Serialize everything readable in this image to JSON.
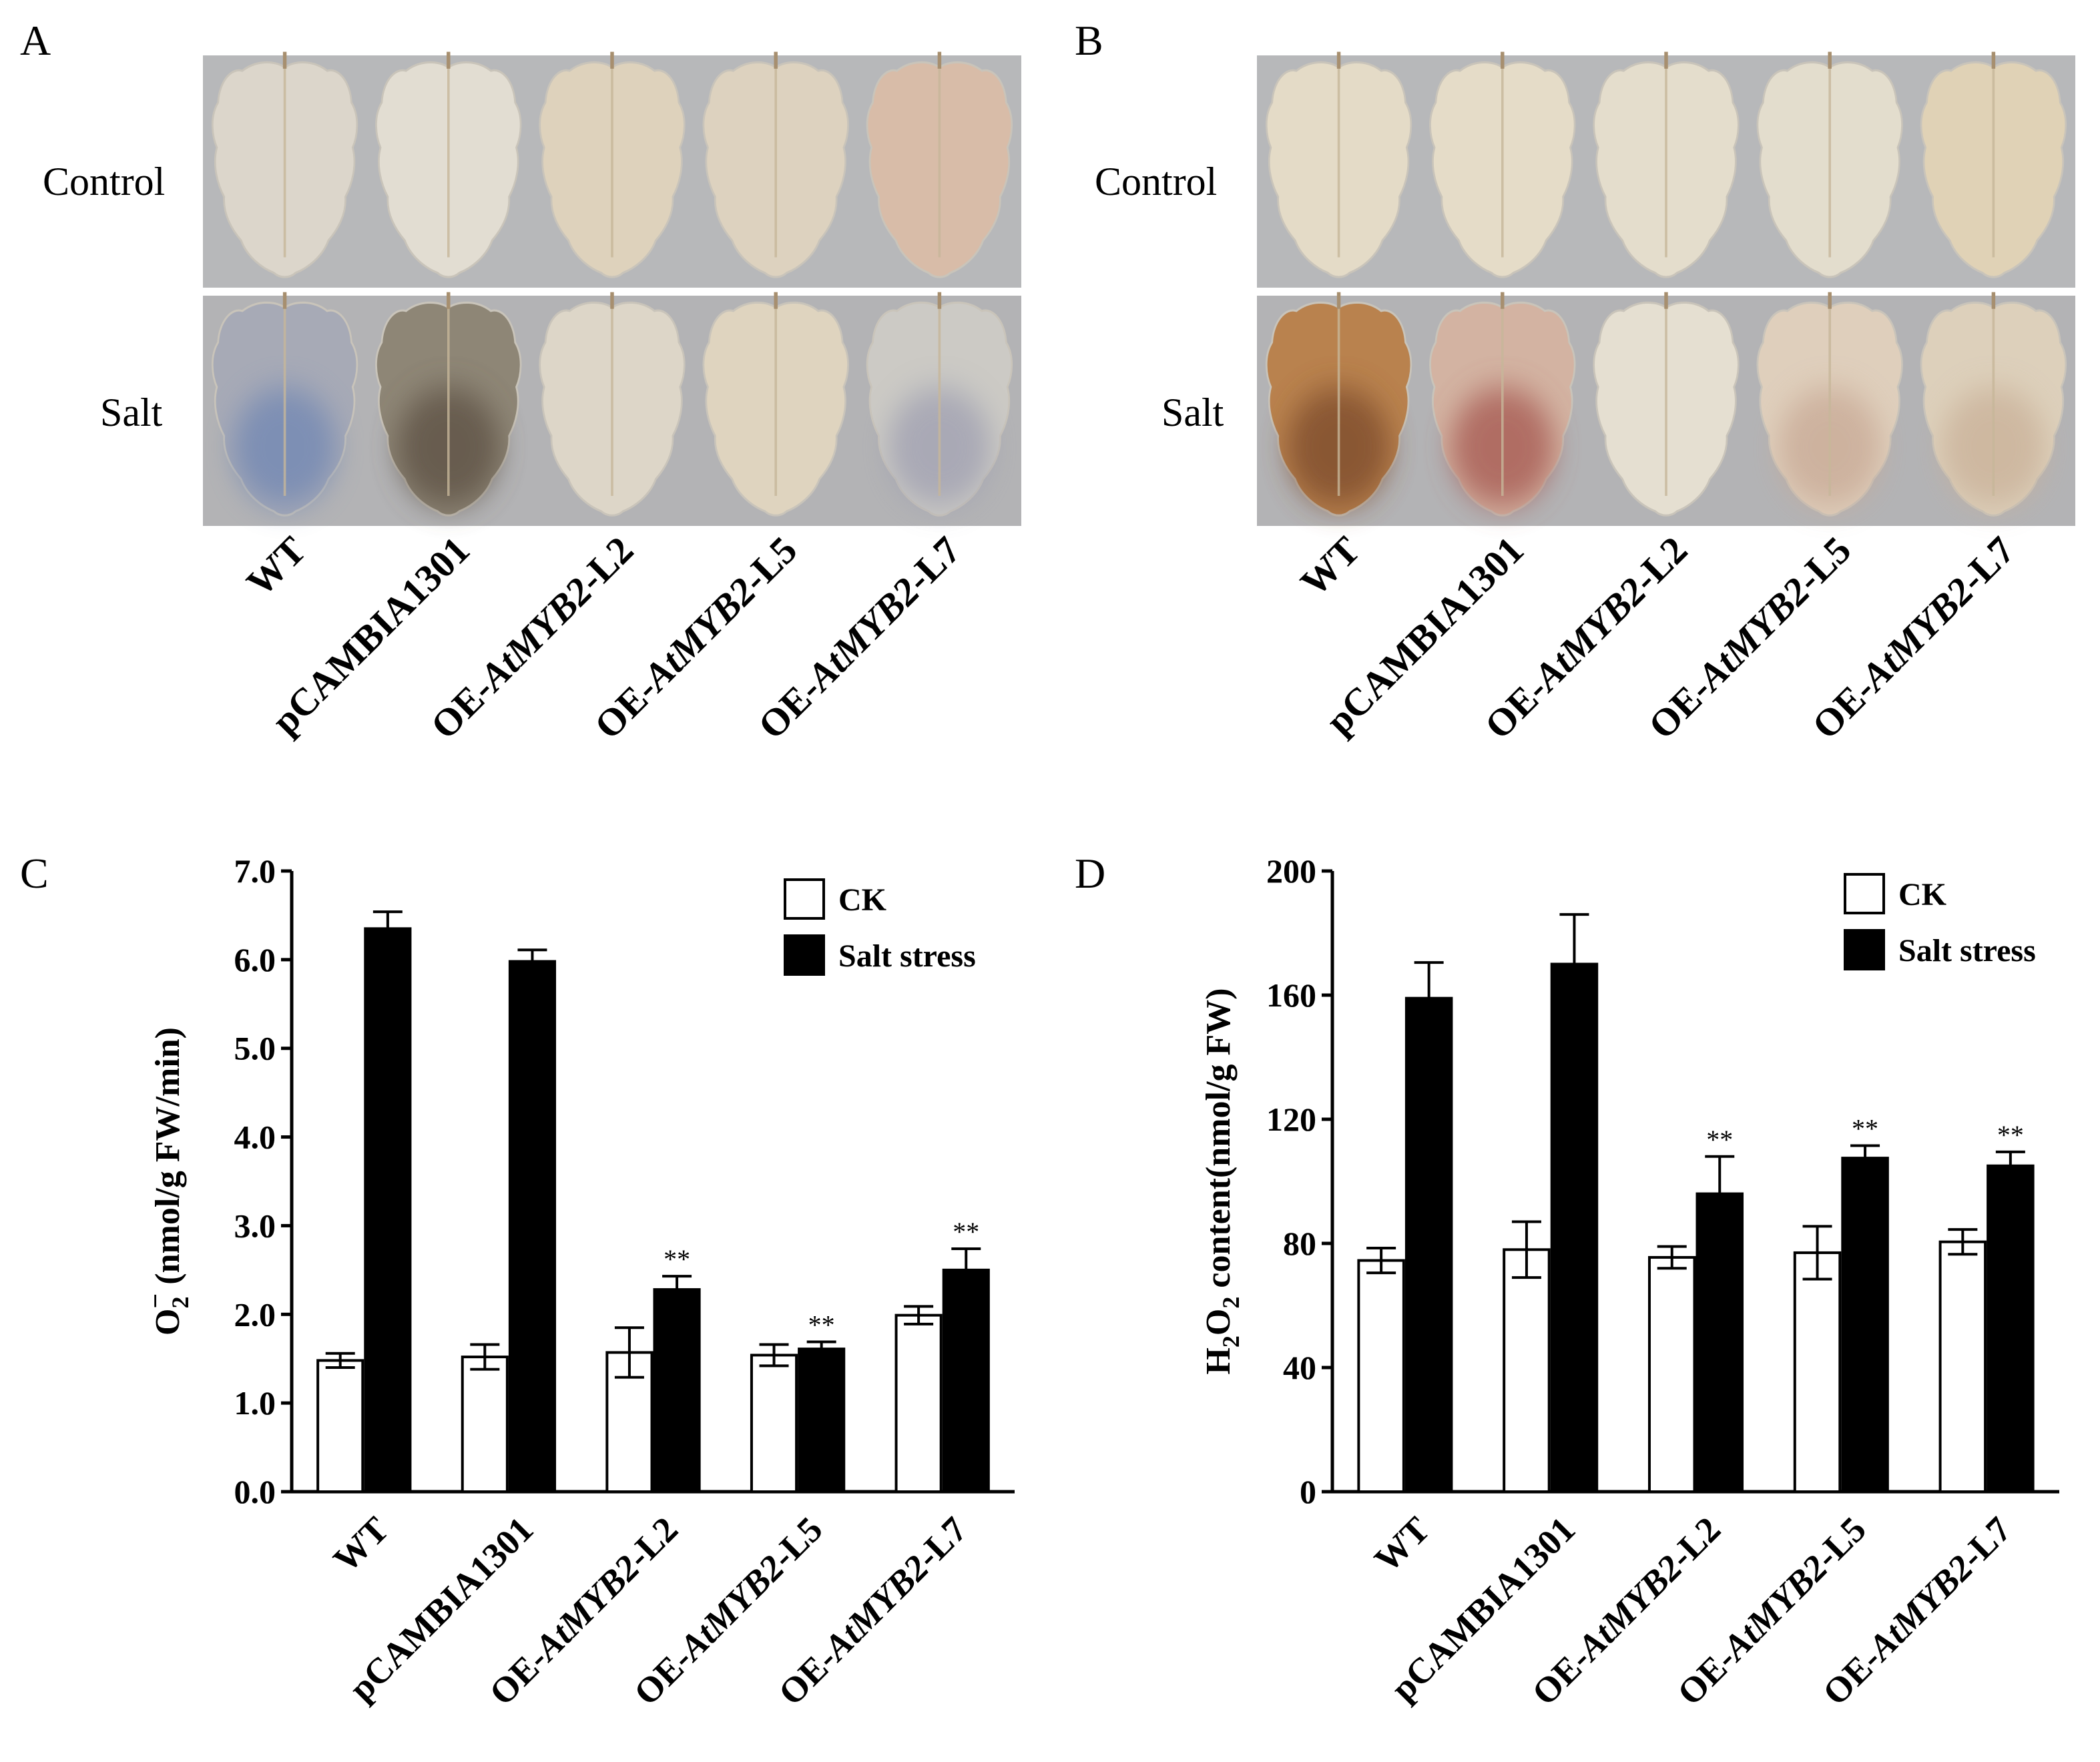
{
  "figure": {
    "panels": {
      "A": {
        "letter": "A",
        "rows": [
          "Control",
          "Salt"
        ],
        "lines": [
          {
            "base": "WT",
            "italic": "",
            "suffix": ""
          },
          {
            "base": "pCAMBIA1301",
            "italic": "",
            "suffix": ""
          },
          {
            "base": "OE-",
            "italic": "AtMYB2",
            "suffix": "-L2"
          },
          {
            "base": "OE-",
            "italic": "AtMYB2",
            "suffix": "-L5"
          },
          {
            "base": "OE-",
            "italic": "AtMYB2",
            "suffix": "-L7"
          }
        ],
        "leaf_colors": {
          "control": [
            "#dcd6cb",
            "#e2ddd2",
            "#ded2bc",
            "#ddd2bf",
            "#d8bca8"
          ],
          "salt": [
            "#a7aab6",
            "#8e8676",
            "#ddd6c8",
            "#dfd4bf",
            "#cccac5"
          ]
        },
        "stain_colors": {
          "salt": [
            "#6f86b4",
            "#5c5043",
            "",
            "",
            "#9e9fb0"
          ]
        }
      },
      "B": {
        "letter": "B",
        "rows": [
          "Control",
          "Salt"
        ],
        "lines": [
          {
            "base": "WT",
            "italic": "",
            "suffix": ""
          },
          {
            "base": "pCAMBIA1301",
            "italic": "",
            "suffix": ""
          },
          {
            "base": "OE-",
            "italic": "AtMYB2",
            "suffix": "-L2"
          },
          {
            "base": "OE-",
            "italic": "AtMYB2",
            "suffix": "-L5"
          },
          {
            "base": "OE-",
            "italic": "AtMYB2",
            "suffix": "-L7"
          }
        ],
        "leaf_colors": {
          "control": [
            "#e4dbc7",
            "#e5dcc8",
            "#e4ddcc",
            "#e3ddcd",
            "#e0d2b6"
          ],
          "salt": [
            "#b9824e",
            "#d3b3a2",
            "#e5dfd1",
            "#dfcfbc",
            "#ddd0bb"
          ]
        },
        "stain_colors": {
          "salt": [
            "#7a4a2a",
            "#a5574f",
            "",
            "#c8a995",
            "#c9b098"
          ]
        }
      }
    }
  },
  "chart_data": [
    {
      "panel": "C",
      "type": "bar",
      "categories": [
        {
          "base": "WT",
          "italic": "",
          "suffix": ""
        },
        {
          "base": "pCAMBIA1301",
          "italic": "",
          "suffix": ""
        },
        {
          "base": "OE-",
          "italic": "AtMYB2",
          "suffix": "-L2"
        },
        {
          "base": "OE-",
          "italic": "AtMYB2",
          "suffix": "-L5"
        },
        {
          "base": "OE-",
          "italic": "AtMYB2",
          "suffix": "-L7"
        }
      ],
      "ylabel": {
        "main": "O",
        "sub": "2",
        "sup": "−",
        "rest": " (nmol/g FW/min)"
      },
      "ylim": [
        0,
        7
      ],
      "yticks": [
        0,
        1,
        2,
        3,
        4,
        5,
        6,
        7
      ],
      "ytick_labels": [
        "0.0",
        "1.0",
        "2.0",
        "3.0",
        "4.0",
        "5.0",
        "6.0",
        "7.0"
      ],
      "legend": {
        "position": "top-right"
      },
      "series": [
        {
          "name": "CK",
          "fill": "#ffffff",
          "values": [
            1.48,
            1.52,
            1.57,
            1.54,
            1.99
          ],
          "errors": [
            0.08,
            0.14,
            0.28,
            0.12,
            0.1
          ],
          "sig": [
            "",
            "",
            "",
            "",
            ""
          ]
        },
        {
          "name": "Salt stress",
          "fill": "#000000",
          "values": [
            6.35,
            5.98,
            2.28,
            1.61,
            2.5
          ],
          "errors": [
            0.19,
            0.13,
            0.15,
            0.08,
            0.24
          ],
          "sig": [
            "",
            "",
            "**",
            "**",
            "**"
          ]
        }
      ]
    },
    {
      "panel": "D",
      "type": "bar",
      "categories": [
        {
          "base": "WT",
          "italic": "",
          "suffix": ""
        },
        {
          "base": "pCAMBIA1301",
          "italic": "",
          "suffix": ""
        },
        {
          "base": "OE-",
          "italic": "AtMYB2",
          "suffix": "-L2"
        },
        {
          "base": "OE-",
          "italic": "AtMYB2",
          "suffix": "-L5"
        },
        {
          "base": "OE-",
          "italic": "AtMYB2",
          "suffix": "-L7"
        }
      ],
      "ylabel": {
        "p1": "H",
        "s1": "2",
        "p2": "O",
        "s2": "2",
        "rest": " content(nmol/g FW)"
      },
      "ylim": [
        0,
        200
      ],
      "yticks": [
        0,
        40,
        80,
        120,
        160,
        200
      ],
      "ytick_labels": [
        "0",
        "40",
        "80",
        "120",
        "160",
        "200"
      ],
      "legend": {
        "position": "top-right"
      },
      "series": [
        {
          "name": "CK",
          "fill": "#ffffff",
          "values": [
            74.5,
            78,
            75.5,
            77,
            80.5
          ],
          "errors": [
            4,
            9,
            3.5,
            8.5,
            4
          ],
          "sig": [
            "",
            "",
            "",
            "",
            ""
          ]
        },
        {
          "name": "Salt stress",
          "fill": "#000000",
          "values": [
            159,
            170,
            96,
            107.5,
            105
          ],
          "errors": [
            11.5,
            16,
            12,
            4,
            4.5
          ],
          "sig": [
            "",
            "",
            "**",
            "**",
            "**"
          ]
        }
      ]
    }
  ]
}
